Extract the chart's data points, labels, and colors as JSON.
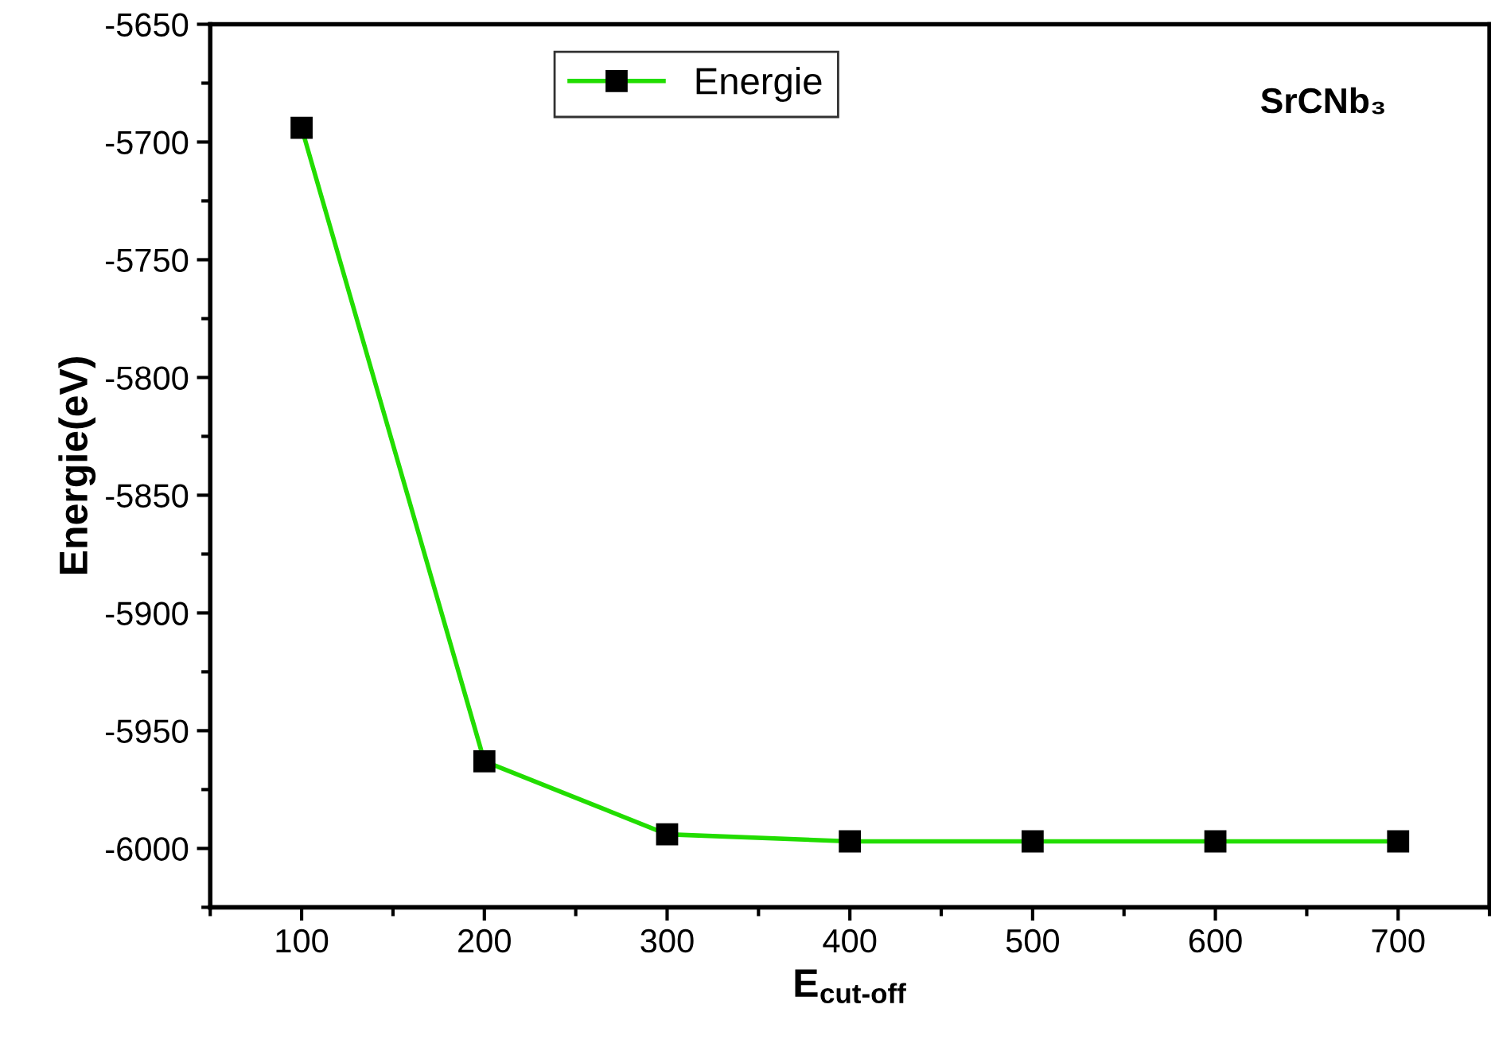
{
  "chart_data": {
    "type": "line",
    "xlabel": "E$_{cut-off}$",
    "ylabel": "Energie(eV)",
    "annotations": [
      "SrCNb₃"
    ],
    "x": [
      100,
      200,
      300,
      400,
      500,
      600,
      700
    ],
    "series": [
      {
        "name": "Energie",
        "color": "#22dd00",
        "values": [
          -5694,
          -5963,
          -5994,
          -5997,
          -5997,
          -5997,
          -5997
        ]
      }
    ],
    "xlim": [
      50,
      750
    ],
    "xticks": [
      100,
      200,
      300,
      400,
      500,
      600,
      700
    ],
    "ylim": [
      -6025,
      -5650
    ],
    "yticks": [
      -6000,
      -5950,
      -5900,
      -5850,
      -5800,
      -5750,
      -5700,
      -5650
    ],
    "marker": "square",
    "line_style": "solid",
    "grid": false,
    "legend": "top"
  }
}
